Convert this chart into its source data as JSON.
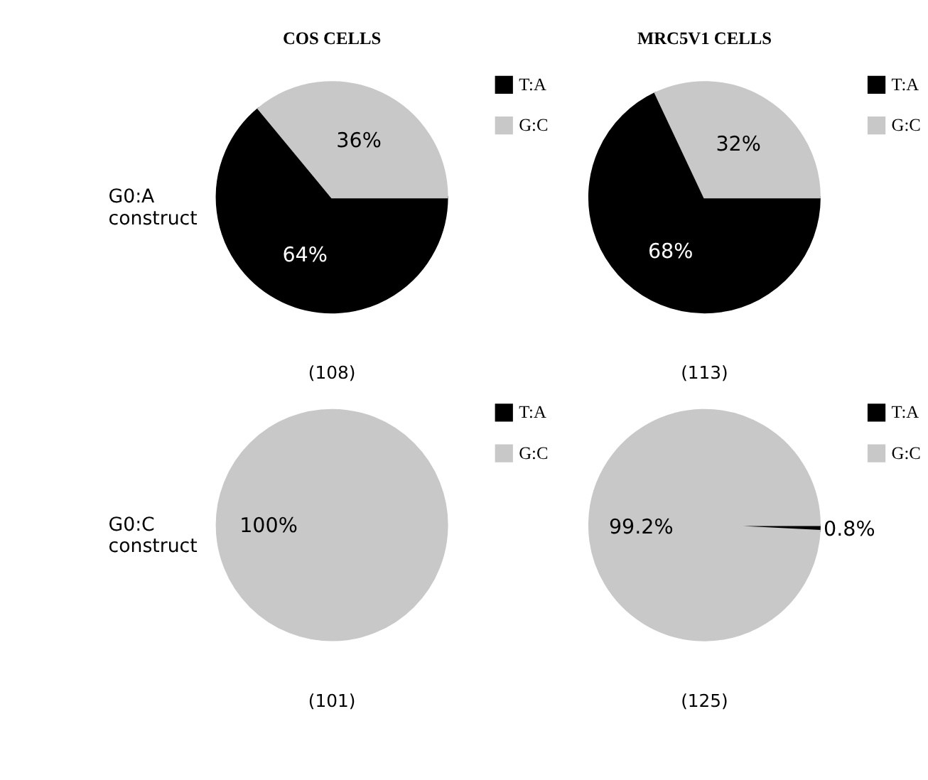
{
  "chart_data": [
    {
      "type": "pie",
      "title": "COS CELLS",
      "ylabel": "G0:A construct",
      "categories": [
        "T:A",
        "G:C"
      ],
      "values": [
        64,
        36
      ],
      "colors": [
        "#000000",
        "#c8c8c8"
      ],
      "value_labels": [
        "64%",
        "36%"
      ],
      "legend": "right",
      "annotations": [
        "(108)"
      ]
    },
    {
      "type": "pie",
      "title": "MRC5V1 CELLS",
      "categories": [
        "T:A",
        "G:C"
      ],
      "values": [
        68,
        32
      ],
      "colors": [
        "#000000",
        "#c8c8c8"
      ],
      "value_labels": [
        "68%",
        "32%"
      ],
      "legend": "right",
      "annotations": [
        "(113)"
      ]
    },
    {
      "type": "pie",
      "ylabel": "G0:C construct",
      "categories": [
        "T:A",
        "G:C"
      ],
      "values": [
        0,
        100
      ],
      "colors": [
        "#000000",
        "#c8c8c8"
      ],
      "value_labels": [
        null,
        "100%"
      ],
      "legend": "right",
      "annotations": [
        "(101)"
      ]
    },
    {
      "type": "pie",
      "categories": [
        "T:A",
        "G:C"
      ],
      "values": [
        0.8,
        99.2
      ],
      "colors": [
        "#000000",
        "#c8c8c8"
      ],
      "value_labels": [
        "0.8%",
        "99.2%"
      ],
      "legend": "right",
      "annotations": [
        "(125)"
      ]
    }
  ]
}
